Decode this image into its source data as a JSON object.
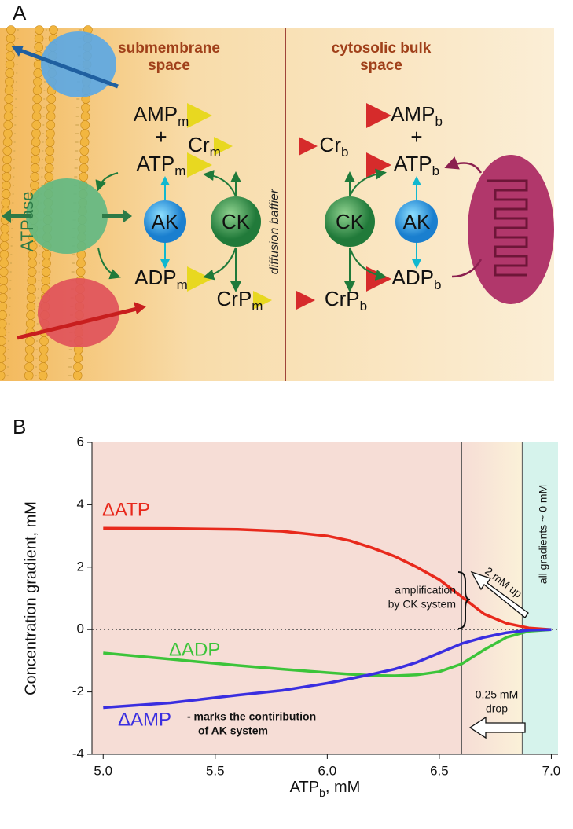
{
  "panel_labels": [
    "A",
    "B"
  ],
  "panel_a": {
    "headers": [
      [
        "submembrane",
        "space"
      ],
      [
        "cytosolic bulk",
        "space"
      ]
    ],
    "barrier": "diffusion baffier",
    "atpase": "ATPase",
    "plus": "+",
    "enzymes": {
      "ak": "AK",
      "ck": "CK"
    },
    "species": {
      "amp_m": {
        "base": "AMP",
        "sub": "m"
      },
      "atp_m": {
        "base": "ATP",
        "sub": "m"
      },
      "adp_m": {
        "base": "ADP",
        "sub": "m"
      },
      "cr_m": {
        "base": "Cr",
        "sub": "m"
      },
      "crp_m": {
        "base": "CrP",
        "sub": "m"
      },
      "amp_b": {
        "base": "AMP",
        "sub": "b"
      },
      "atp_b": {
        "base": "ATP",
        "sub": "b"
      },
      "adp_b": {
        "base": "ADP",
        "sub": "b"
      },
      "cr_b": {
        "base": "Cr",
        "sub": "b"
      },
      "crp_b": {
        "base": "CrP",
        "sub": "b"
      }
    }
  },
  "chart_data": {
    "type": "line",
    "ylabel": "Concentration gradient, mM",
    "xlabel": {
      "base": "ATP",
      "sub": "b",
      "suffix": ", mM"
    },
    "xlim": [
      4.95,
      7.03
    ],
    "ylim": [
      -4,
      6
    ],
    "xticks": [
      {
        "value": 5,
        "label": "5.0"
      },
      {
        "value": 5.5,
        "label": "5.5"
      },
      {
        "value": 6,
        "label": "6.0"
      },
      {
        "value": 6.5,
        "label": "6.5"
      },
      {
        "value": 7,
        "label": "7.0"
      }
    ],
    "yticks": [
      -4,
      -2,
      0,
      2,
      4,
      6
    ],
    "x": [
      5.0,
      5.3,
      5.6,
      5.8,
      6.0,
      6.1,
      6.2,
      6.3,
      6.4,
      6.5,
      6.6,
      6.7,
      6.8,
      6.9,
      7.0
    ],
    "series": [
      {
        "name": "ΔATP",
        "color": "#e8291c",
        "values": [
          3.25,
          3.24,
          3.21,
          3.15,
          3.0,
          2.85,
          2.62,
          2.35,
          2.0,
          1.6,
          1.05,
          0.5,
          0.2,
          0.05,
          0
        ]
      },
      {
        "name": "ΔADP",
        "color": "#3cc43a",
        "values": [
          -0.75,
          -0.95,
          -1.15,
          -1.27,
          -1.38,
          -1.43,
          -1.47,
          -1.48,
          -1.45,
          -1.35,
          -1.1,
          -0.65,
          -0.25,
          -0.05,
          0
        ]
      },
      {
        "name": "ΔAMP",
        "color": "#3a2ee0",
        "values": [
          -2.5,
          -2.35,
          -2.1,
          -1.95,
          -1.72,
          -1.58,
          -1.43,
          -1.27,
          -1.05,
          -0.75,
          -0.45,
          -0.25,
          -0.1,
          -0.02,
          0
        ]
      }
    ],
    "vlines": [
      6.6,
      6.87
    ],
    "annotations": {
      "amp_note": [
        "- marks the contiribution",
        "of AK system"
      ],
      "ck_note": [
        "amplification",
        "by CK system"
      ],
      "up": "2 mM up",
      "drop": [
        "0.25 mM",
        "drop"
      ],
      "zero": "all gradients ~ 0 mM"
    }
  }
}
